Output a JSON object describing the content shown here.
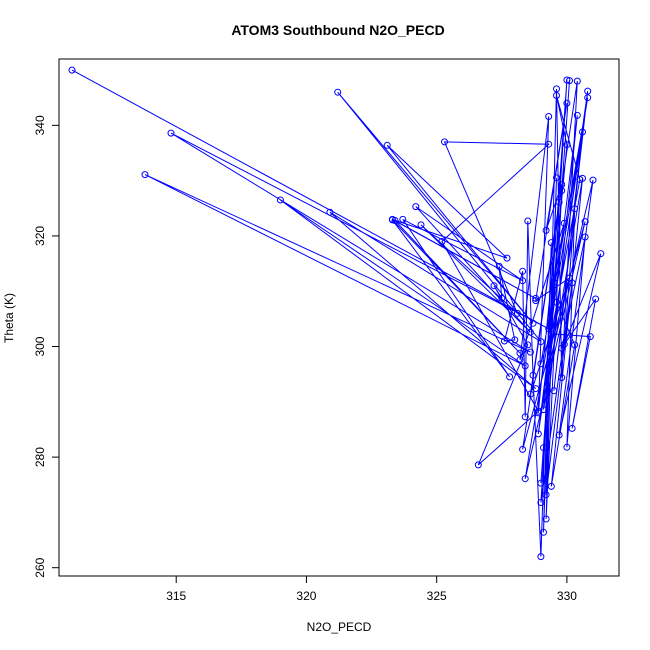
{
  "chart_data": {
    "type": "line",
    "title": "ATOM3 Southbound N2O_PECD",
    "xlabel": "N2O_PECD",
    "ylabel": "Theta (K)",
    "xlim": [
      310.5,
      332.0
    ],
    "ylim": [
      258.5,
      352.0
    ],
    "xticks": [
      315,
      320,
      325,
      330
    ],
    "yticks": [
      260,
      280,
      300,
      320,
      340
    ],
    "grid": false,
    "legend": "none",
    "line_color": "#0000ff",
    "marker": "open-circle",
    "series": [
      {
        "values_xy": [
          [
            311.0,
            350.0
          ],
          [
            329.3,
            303.2
          ],
          [
            314.8,
            338.6
          ],
          [
            328.6,
            299.0
          ],
          [
            313.8,
            331.1
          ],
          [
            328.4,
            296.5
          ],
          [
            319.0,
            326.5
          ],
          [
            328.8,
            292.4
          ],
          [
            320.9,
            324.3
          ],
          [
            329.0,
            300.9
          ],
          [
            321.2,
            346.0
          ],
          [
            328.7,
            304.2
          ],
          [
            323.1,
            336.4
          ],
          [
            327.7,
            316.0
          ],
          [
            323.3,
            323.0
          ],
          [
            328.8,
            308.7
          ],
          [
            323.4,
            322.8
          ],
          [
            328.2,
            298.8
          ],
          [
            323.3,
            322.9
          ],
          [
            327.8,
            294.5
          ],
          [
            323.7,
            323.0
          ],
          [
            328.3,
            311.9
          ],
          [
            324.2,
            325.3
          ],
          [
            328.6,
            302.6
          ],
          [
            324.4,
            322.0
          ],
          [
            328.1,
            306.0
          ],
          [
            325.3,
            337.0
          ],
          [
            329.3,
            336.6
          ],
          [
            325.2,
            319.0
          ],
          [
            328.9,
            288.3
          ],
          [
            326.6,
            278.6
          ],
          [
            328.5,
            300.3
          ],
          [
            327.2,
            311.0
          ],
          [
            327.5,
            308.7
          ],
          [
            327.4,
            314.5
          ],
          [
            328.0,
            301.2
          ],
          [
            327.6,
            301.0
          ],
          [
            328.3,
            313.6
          ],
          [
            328.4,
            287.3
          ],
          [
            328.5,
            322.7
          ],
          [
            328.7,
            294.8
          ],
          [
            329.0,
            262.0
          ],
          [
            329.4,
            318.8
          ],
          [
            329.1,
            266.4
          ],
          [
            329.6,
            330.5
          ],
          [
            329.2,
            268.8
          ],
          [
            329.8,
            328.2
          ],
          [
            329.0,
            275.3
          ],
          [
            330.1,
            348.1
          ],
          [
            329.1,
            281.7
          ],
          [
            330.4,
            341.8
          ],
          [
            328.9,
            284.2
          ],
          [
            330.6,
            338.8
          ],
          [
            329.5,
            292.0
          ],
          [
            330.8,
            346.2
          ],
          [
            329.3,
            296.3
          ],
          [
            331.0,
            330.1
          ],
          [
            329.7,
            284.0
          ],
          [
            331.3,
            316.8
          ],
          [
            329.9,
            300.4
          ],
          [
            330.3,
            324.9
          ],
          [
            330.0,
            281.8
          ],
          [
            330.7,
            319.8
          ],
          [
            329.8,
            299.7
          ],
          [
            331.1,
            308.6
          ],
          [
            330.2,
            285.2
          ],
          [
            330.9,
            301.8
          ],
          [
            329.4,
            302.3
          ],
          [
            330.5,
            330.2
          ],
          [
            329.6,
            345.4
          ],
          [
            330.0,
            336.5
          ],
          [
            329.5,
            311.6
          ],
          [
            329.9,
            322.3
          ],
          [
            328.2,
            297.6
          ],
          [
            329.3,
            341.6
          ],
          [
            328.9,
            288.0
          ],
          [
            329.7,
            326.1
          ],
          [
            328.6,
            291.4
          ],
          [
            330.1,
            312.4
          ],
          [
            328.8,
            308.3
          ],
          [
            330.0,
            344.0
          ],
          [
            329.2,
            321.0
          ],
          [
            329.8,
            329.3
          ],
          [
            329.6,
            308.0
          ],
          [
            330.3,
            300.3
          ],
          [
            329.4,
            274.7
          ],
          [
            330.6,
            330.4
          ],
          [
            329.1,
            288.6
          ],
          [
            330.0,
            348.2
          ],
          [
            329.0,
            271.8
          ],
          [
            330.2,
            311.5
          ],
          [
            329.2,
            273.2
          ],
          [
            329.6,
            346.6
          ],
          [
            329.8,
            294.4
          ],
          [
            330.4,
            348.0
          ],
          [
            328.3,
            281.4
          ],
          [
            330.7,
            322.6
          ],
          [
            328.4,
            276.1
          ],
          [
            330.8,
            345.0
          ],
          [
            329.0,
            296.9
          ]
        ]
      }
    ]
  }
}
